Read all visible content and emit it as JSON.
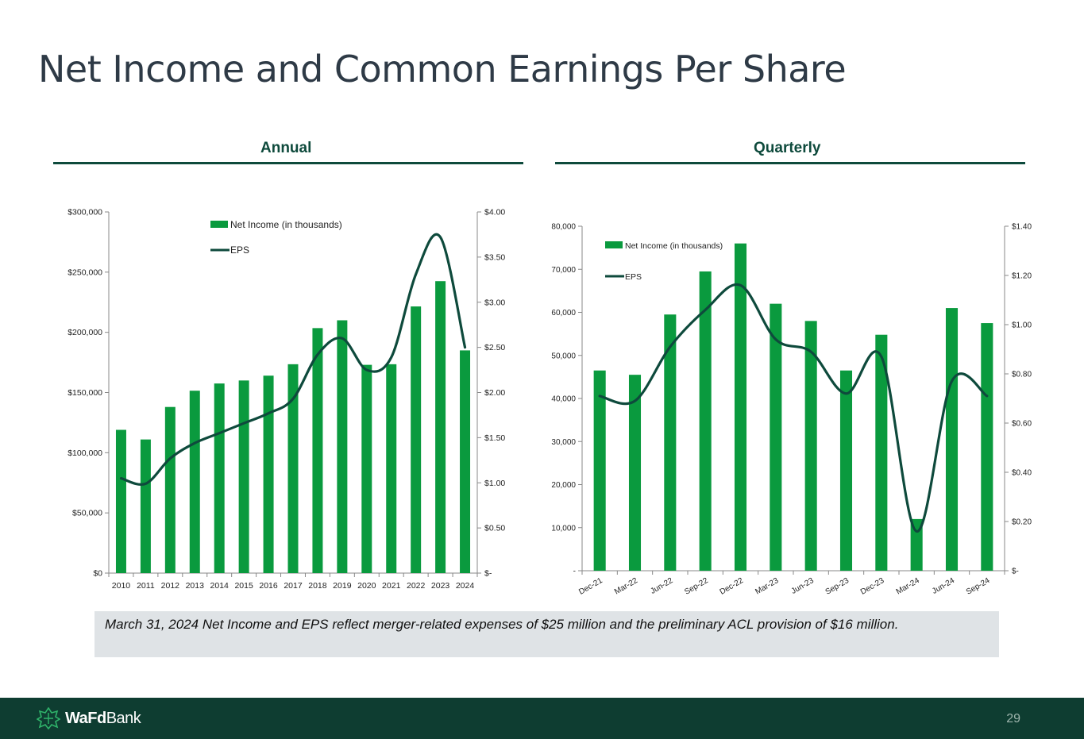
{
  "title": "Net Income and Common Earnings Per Share",
  "sections": {
    "annual": "Annual",
    "quarterly": "Quarterly"
  },
  "note": "March 31, 2024 Net Income and EPS reflect merger-related expenses of $25 million and the preliminary ACL provision of $16 million.",
  "footer": {
    "logo_bold": "WaFd",
    "logo_light": "Bank",
    "page_number": "29"
  },
  "colors": {
    "bar": "#0a9a3e",
    "line": "#0e4a3c",
    "header": "#0e4a3c",
    "footer": "#0e3d31",
    "note_bg": "#dfe3e6"
  },
  "chart_data": [
    {
      "type": "bar",
      "title": "Annual",
      "categories": [
        "2010",
        "2011",
        "2012",
        "2013",
        "2014",
        "2015",
        "2016",
        "2017",
        "2018",
        "2019",
        "2020",
        "2021",
        "2022",
        "2023",
        "2024"
      ],
      "series": [
        {
          "name": "Net Income (in thousands)",
          "type": "bar",
          "axis": "left",
          "values": [
            119000,
            111000,
            138000,
            151500,
            157500,
            160000,
            164000,
            173500,
            203500,
            210000,
            173000,
            173500,
            221500,
            242500,
            185000
          ]
        },
        {
          "name": "EPS",
          "type": "line",
          "axis": "right",
          "values": [
            1.05,
            0.99,
            1.27,
            1.44,
            1.55,
            1.66,
            1.77,
            1.93,
            2.42,
            2.6,
            2.25,
            2.39,
            3.31,
            3.72,
            2.5
          ]
        }
      ],
      "y_left": {
        "min": 0,
        "max": 300000,
        "ticks": [
          0,
          50000,
          100000,
          150000,
          200000,
          250000,
          300000
        ],
        "tick_labels": [
          "$0",
          "$50,000",
          "$100,000",
          "$150,000",
          "$200,000",
          "$250,000",
          "$300,000"
        ]
      },
      "y_right": {
        "min": 0,
        "max": 4,
        "ticks": [
          0,
          0.5,
          1,
          1.5,
          2,
          2.5,
          3,
          3.5,
          4
        ],
        "tick_labels": [
          "$-",
          "$0.50",
          "$1.00",
          "$1.50",
          "$2.00",
          "$2.50",
          "$3.00",
          "$3.50",
          "$4.00"
        ]
      },
      "legend_position": "top-center",
      "grid": false
    },
    {
      "type": "bar",
      "title": "Quarterly",
      "categories": [
        "Dec-21",
        "Mar-22",
        "Jun-22",
        "Sep-22",
        "Dec-22",
        "Mar-23",
        "Jun-23",
        "Sep-23",
        "Dec-23",
        "Mar-24",
        "Jun-24",
        "Sep-24"
      ],
      "series": [
        {
          "name": "Net Income (in thousands)",
          "type": "bar",
          "axis": "left",
          "values": [
            46500,
            45500,
            59500,
            69500,
            76000,
            62000,
            58000,
            46500,
            54800,
            12000,
            61000,
            57500
          ]
        },
        {
          "name": "EPS",
          "type": "line",
          "axis": "right",
          "values": [
            0.71,
            0.69,
            0.91,
            1.06,
            1.16,
            0.94,
            0.89,
            0.72,
            0.87,
            0.16,
            0.77,
            0.71
          ]
        }
      ],
      "y_left": {
        "min": 0,
        "max": 80000,
        "ticks": [
          0,
          10000,
          20000,
          30000,
          40000,
          50000,
          60000,
          70000,
          80000
        ],
        "tick_labels": [
          "-",
          "10,000",
          "20,000",
          "30,000",
          "40,000",
          "50,000",
          "60,000",
          "70,000",
          "80,000"
        ]
      },
      "y_right": {
        "min": 0,
        "max": 1.4,
        "ticks": [
          0,
          0.2,
          0.4,
          0.6,
          0.8,
          1.0,
          1.2,
          1.4
        ],
        "tick_labels": [
          "$-",
          "$0.20",
          "$0.40",
          "$0.60",
          "$0.80",
          "$1.00",
          "$1.20",
          "$1.40"
        ]
      },
      "x_tick_rotation": -30,
      "legend_position": "top-left",
      "grid": false
    }
  ]
}
